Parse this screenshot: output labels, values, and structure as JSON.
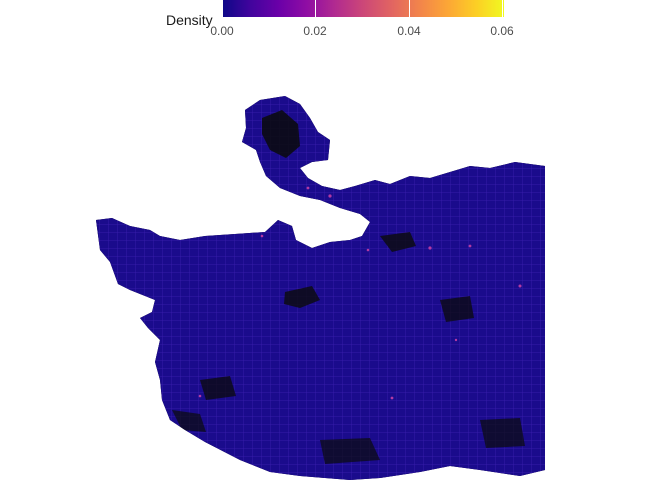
{
  "legend": {
    "title": "Density",
    "ticks": [
      "0.00",
      "0.02",
      "0.04",
      "0.06"
    ],
    "colormap": [
      "#0d0887",
      "#6a00a8",
      "#b12a90",
      "#e16462",
      "#fca636",
      "#f0f921"
    ]
  },
  "map": {
    "land_color": "#0b0b0b",
    "base_density_color": "#1a0b8c",
    "street_color": "#3a1fae",
    "hotspot_color": "#c43fa5"
  }
}
